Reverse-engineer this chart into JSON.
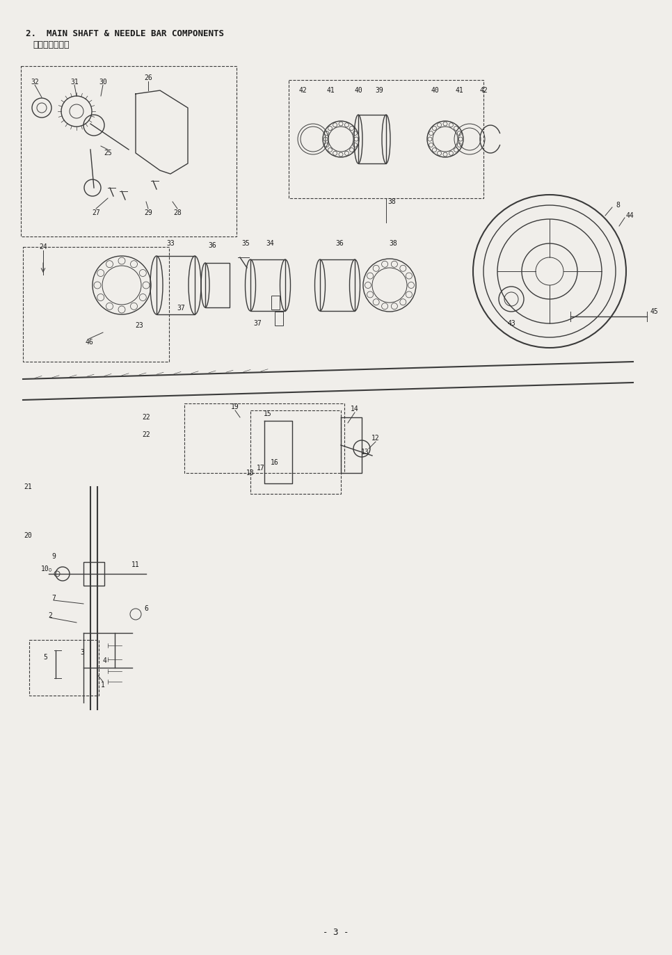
{
  "title_line1": "2.  MAIN SHAFT & NEEDLE BAR COMPONENTS",
  "title_line2": "上軸・针棒関係",
  "page_number": "- 3 -",
  "bg_color": "#f0eeea",
  "line_color": "#3a3a3a",
  "title_color": "#1a1a1a",
  "fig_width": 9.66,
  "fig_height": 13.73,
  "dpi": 100
}
